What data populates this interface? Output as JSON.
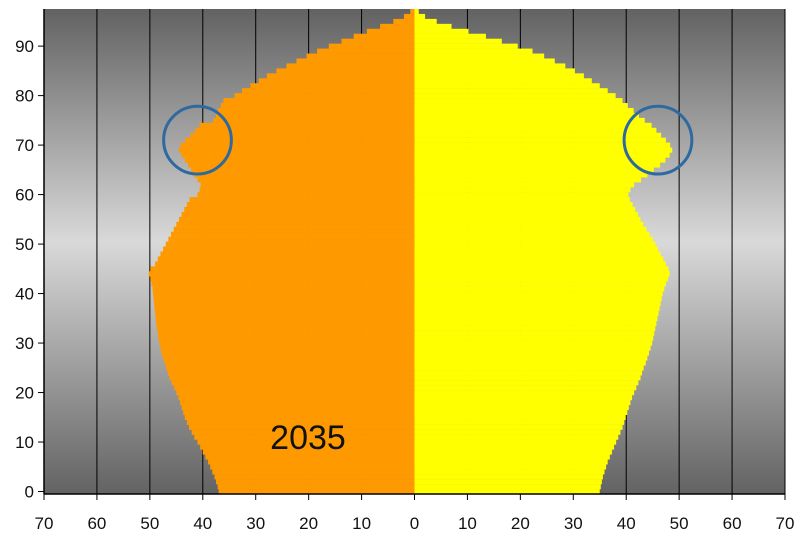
{
  "chart_data": {
    "type": "population_pyramid",
    "year_label": "2035",
    "title": "",
    "xlabel": "",
    "ylabel": "",
    "x_ticks": [
      70,
      60,
      50,
      40,
      30,
      20,
      10,
      0,
      10,
      20,
      30,
      40,
      50,
      60,
      70
    ],
    "y_ticks": [
      0,
      10,
      20,
      30,
      40,
      50,
      60,
      70,
      80,
      90
    ],
    "xlim": [
      -70,
      70
    ],
    "ylim": [
      -0.5,
      97.5
    ],
    "grid": "vertical",
    "legend": "none",
    "colors": {
      "left_fill": "#ff9900",
      "right_fill": "#ffff00",
      "circle": "#2e6a9f",
      "grid": "#000000",
      "background_dark": "#6a6a6a",
      "background_light": "#d8d8d8"
    },
    "series": [
      {
        "side": "left",
        "ages": [
          0,
          1,
          2,
          3,
          4,
          5,
          6,
          7,
          8,
          9,
          10,
          11,
          12,
          13,
          14,
          15,
          16,
          17,
          18,
          19,
          20,
          21,
          22,
          23,
          24,
          25,
          26,
          27,
          28,
          29,
          30,
          31,
          32,
          33,
          34,
          35,
          36,
          37,
          38,
          39,
          40,
          41,
          42,
          43,
          44,
          45,
          46,
          47,
          48,
          49,
          50,
          51,
          52,
          53,
          54,
          55,
          56,
          57,
          58,
          59,
          60,
          61,
          62,
          63,
          64,
          65,
          66,
          67,
          68,
          69,
          70,
          71,
          72,
          73,
          74,
          75,
          76,
          77,
          78,
          79,
          80,
          81,
          82,
          83,
          84,
          85,
          86,
          87,
          88,
          89,
          90,
          91,
          92,
          93,
          94,
          95,
          96,
          97
        ],
        "values": [
          37.0,
          37.2,
          37.5,
          37.8,
          38.2,
          38.6,
          39.0,
          39.5,
          40.0,
          40.5,
          41.0,
          41.6,
          42.1,
          42.6,
          43.0,
          43.4,
          43.7,
          44.0,
          44.3,
          44.6,
          45.0,
          45.4,
          45.9,
          46.3,
          46.6,
          46.9,
          47.2,
          47.5,
          47.8,
          48.0,
          48.2,
          48.4,
          48.5,
          48.7,
          48.8,
          48.9,
          49.0,
          49.1,
          49.2,
          49.3,
          49.4,
          49.5,
          49.7,
          49.9,
          50.2,
          49.9,
          49.0,
          48.5,
          48.0,
          47.5,
          47.0,
          46.5,
          46.0,
          45.5,
          45.0,
          44.5,
          44.0,
          43.5,
          43.0,
          42.5,
          41.0,
          40.6,
          40.4,
          41.0,
          41.6,
          42.2,
          42.8,
          43.4,
          44.0,
          44.5,
          44.2,
          43.3,
          42.3,
          41.4,
          40.6,
          38.0,
          37.5,
          37.1,
          36.6,
          36.1,
          34.0,
          32.6,
          31.0,
          29.4,
          27.9,
          26.1,
          24.2,
          22.3,
          20.4,
          18.4,
          16.2,
          13.8,
          11.5,
          9.0,
          6.5,
          4.0,
          2.0,
          0.8
        ]
      },
      {
        "side": "right",
        "ages": [
          0,
          1,
          2,
          3,
          4,
          5,
          6,
          7,
          8,
          9,
          10,
          11,
          12,
          13,
          14,
          15,
          16,
          17,
          18,
          19,
          20,
          21,
          22,
          23,
          24,
          25,
          26,
          27,
          28,
          29,
          30,
          31,
          32,
          33,
          34,
          35,
          36,
          37,
          38,
          39,
          40,
          41,
          42,
          43,
          44,
          45,
          46,
          47,
          48,
          49,
          50,
          51,
          52,
          53,
          54,
          55,
          56,
          57,
          58,
          59,
          60,
          61,
          62,
          63,
          64,
          65,
          66,
          67,
          68,
          69,
          70,
          71,
          72,
          73,
          74,
          75,
          76,
          77,
          78,
          79,
          80,
          81,
          82,
          83,
          84,
          85,
          86,
          87,
          88,
          89,
          90,
          91,
          92,
          93,
          94,
          95,
          96,
          97
        ],
        "values": [
          35.0,
          35.2,
          35.4,
          35.6,
          35.9,
          36.2,
          36.5,
          36.9,
          37.3,
          37.7,
          38.1,
          38.5,
          38.9,
          39.3,
          39.6,
          39.9,
          40.2,
          40.5,
          40.8,
          41.1,
          41.5,
          41.9,
          42.3,
          42.7,
          43.0,
          43.3,
          43.7,
          44.0,
          44.3,
          44.6,
          44.9,
          45.1,
          45.3,
          45.5,
          45.7,
          45.9,
          46.1,
          46.3,
          46.5,
          46.7,
          46.9,
          47.2,
          47.5,
          47.9,
          48.2,
          48.0,
          47.5,
          47.0,
          46.5,
          46.0,
          45.5,
          45.0,
          44.4,
          43.8,
          43.2,
          42.7,
          42.2,
          41.7,
          41.2,
          40.7,
          40.4,
          40.8,
          41.5,
          42.8,
          44.0,
          45.2,
          46.4,
          47.4,
          48.2,
          48.7,
          48.3,
          47.5,
          46.6,
          45.7,
          44.8,
          43.5,
          42.4,
          41.4,
          40.3,
          39.3,
          38.0,
          36.5,
          35.0,
          33.5,
          32.0,
          30.3,
          28.5,
          26.5,
          24.5,
          22.3,
          19.5,
          16.5,
          13.5,
          10.2,
          7.0,
          4.2,
          2.0,
          0.8
        ]
      }
    ],
    "annotations": [
      {
        "type": "circle",
        "side": "left",
        "x_center": 41.0,
        "age_center": 71
      },
      {
        "type": "circle",
        "side": "right",
        "x_center": 46.0,
        "age_center": 71
      }
    ]
  }
}
